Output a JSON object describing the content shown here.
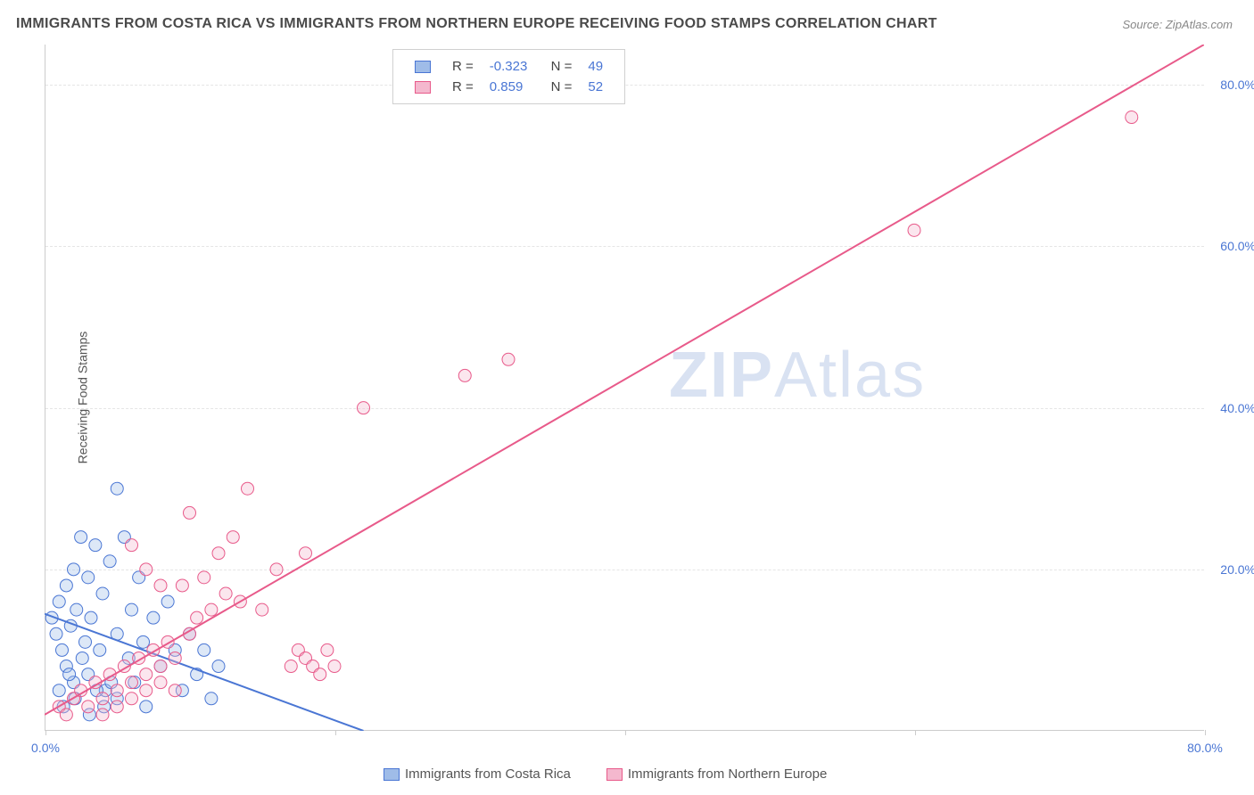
{
  "title": "IMMIGRANTS FROM COSTA RICA VS IMMIGRANTS FROM NORTHERN EUROPE RECEIVING FOOD STAMPS CORRELATION CHART",
  "source": "Source: ZipAtlas.com",
  "watermark_bold": "ZIP",
  "watermark_light": "Atlas",
  "y_axis_label": "Receiving Food Stamps",
  "chart": {
    "type": "scatter",
    "xlim": [
      0,
      80
    ],
    "ylim": [
      0,
      85
    ],
    "x_ticks": [
      0,
      20,
      40,
      60,
      80
    ],
    "x_tick_labels": [
      "0.0%",
      "",
      "",
      "",
      "80.0%"
    ],
    "y_ticks": [
      20,
      40,
      60,
      80
    ],
    "y_tick_labels": [
      "20.0%",
      "40.0%",
      "60.0%",
      "80.0%"
    ],
    "grid_color": "#e5e5e5",
    "axis_color": "#cccccc",
    "background_color": "#ffffff",
    "tick_label_color": "#4a76d4",
    "tick_fontsize": 14,
    "marker_radius": 7,
    "marker_fill_opacity": 0.35,
    "line_width": 2
  },
  "series": [
    {
      "name": "Immigrants from Costa Rica",
      "color_stroke": "#4a76d4",
      "color_fill": "#9fbce8",
      "R": "-0.323",
      "N": "49",
      "trend": {
        "x1": 0,
        "y1": 14.5,
        "x2": 22,
        "y2": 0
      },
      "points": [
        [
          0.5,
          14
        ],
        [
          0.8,
          12
        ],
        [
          1.0,
          16
        ],
        [
          1.2,
          10
        ],
        [
          1.5,
          18
        ],
        [
          1.5,
          8
        ],
        [
          1.8,
          13
        ],
        [
          2.0,
          20
        ],
        [
          2.0,
          6
        ],
        [
          2.2,
          15
        ],
        [
          2.5,
          24
        ],
        [
          2.8,
          11
        ],
        [
          3.0,
          19
        ],
        [
          3.0,
          7
        ],
        [
          3.2,
          14
        ],
        [
          3.5,
          23
        ],
        [
          3.8,
          10
        ],
        [
          4.0,
          17
        ],
        [
          4.2,
          5
        ],
        [
          4.5,
          21
        ],
        [
          5.0,
          12
        ],
        [
          5.0,
          4
        ],
        [
          5.5,
          24
        ],
        [
          5.8,
          9
        ],
        [
          6.0,
          15
        ],
        [
          6.2,
          6
        ],
        [
          6.5,
          19
        ],
        [
          6.8,
          11
        ],
        [
          7.0,
          3
        ],
        [
          7.5,
          14
        ],
        [
          8.0,
          8
        ],
        [
          8.5,
          16
        ],
        [
          5.0,
          30
        ],
        [
          9.0,
          10
        ],
        [
          9.5,
          5
        ],
        [
          10,
          12
        ],
        [
          10.5,
          7
        ],
        [
          11,
          10
        ],
        [
          11.5,
          4
        ],
        [
          12,
          8
        ],
        [
          1.0,
          5
        ],
        [
          1.3,
          3
        ],
        [
          1.7,
          7
        ],
        [
          2.1,
          4
        ],
        [
          2.6,
          9
        ],
        [
          3.1,
          2
        ],
        [
          3.6,
          5
        ],
        [
          4.1,
          3
        ],
        [
          4.6,
          6
        ]
      ]
    },
    {
      "name": "Immigrants from Northern Europe",
      "color_stroke": "#e85a8a",
      "color_fill": "#f4b8ce",
      "R": "0.859",
      "N": "52",
      "trend": {
        "x1": 0,
        "y1": 2,
        "x2": 80,
        "y2": 85
      },
      "points": [
        [
          1,
          3
        ],
        [
          1.5,
          2
        ],
        [
          2,
          4
        ],
        [
          2.5,
          5
        ],
        [
          3,
          3
        ],
        [
          3.5,
          6
        ],
        [
          4,
          4
        ],
        [
          4.5,
          7
        ],
        [
          5,
          5
        ],
        [
          5.5,
          8
        ],
        [
          6,
          6
        ],
        [
          6.5,
          9
        ],
        [
          7,
          7
        ],
        [
          7.5,
          10
        ],
        [
          8,
          8
        ],
        [
          8.5,
          11
        ],
        [
          9,
          9
        ],
        [
          9.5,
          18
        ],
        [
          10,
          12
        ],
        [
          10.5,
          14
        ],
        [
          11,
          19
        ],
        [
          11.5,
          15
        ],
        [
          12,
          22
        ],
        [
          12.5,
          17
        ],
        [
          13,
          24
        ],
        [
          13.5,
          16
        ],
        [
          14,
          30
        ],
        [
          15,
          15
        ],
        [
          16,
          20
        ],
        [
          8,
          18
        ],
        [
          7,
          20
        ],
        [
          17,
          8
        ],
        [
          17.5,
          10
        ],
        [
          18,
          9
        ],
        [
          18.5,
          8
        ],
        [
          19,
          7
        ],
        [
          19.5,
          10
        ],
        [
          20,
          8
        ],
        [
          6,
          23
        ],
        [
          10,
          27
        ],
        [
          18,
          22
        ],
        [
          22,
          40
        ],
        [
          29,
          44
        ],
        [
          32,
          46
        ],
        [
          60,
          62
        ],
        [
          75,
          76
        ],
        [
          4,
          2
        ],
        [
          5,
          3
        ],
        [
          6,
          4
        ],
        [
          7,
          5
        ],
        [
          8,
          6
        ],
        [
          9,
          5
        ]
      ]
    }
  ],
  "legend_top": {
    "r_label": "R =",
    "n_label": "N ="
  },
  "legend_bottom": [
    {
      "label": "Immigrants from Costa Rica",
      "stroke": "#4a76d4",
      "fill": "#9fbce8"
    },
    {
      "label": "Immigrants from Northern Europe",
      "stroke": "#e85a8a",
      "fill": "#f4b8ce"
    }
  ]
}
